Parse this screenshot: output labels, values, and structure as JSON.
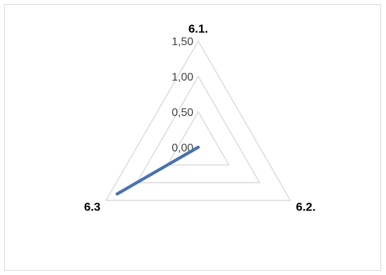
{
  "chart_data": {
    "type": "radar",
    "axes": [
      "6.1.",
      "6.2.",
      "6.3"
    ],
    "rlim": [
      0,
      1.5
    ],
    "ticks": [
      0,
      0.5,
      1.0,
      1.5
    ],
    "tick_labels": [
      "0,00",
      "0,50",
      "1,00",
      "1,50"
    ],
    "grid": true,
    "legend": "none",
    "series": [
      {
        "values": [
          0,
          0,
          1.32
        ],
        "color": "#4a72b0"
      }
    ]
  }
}
